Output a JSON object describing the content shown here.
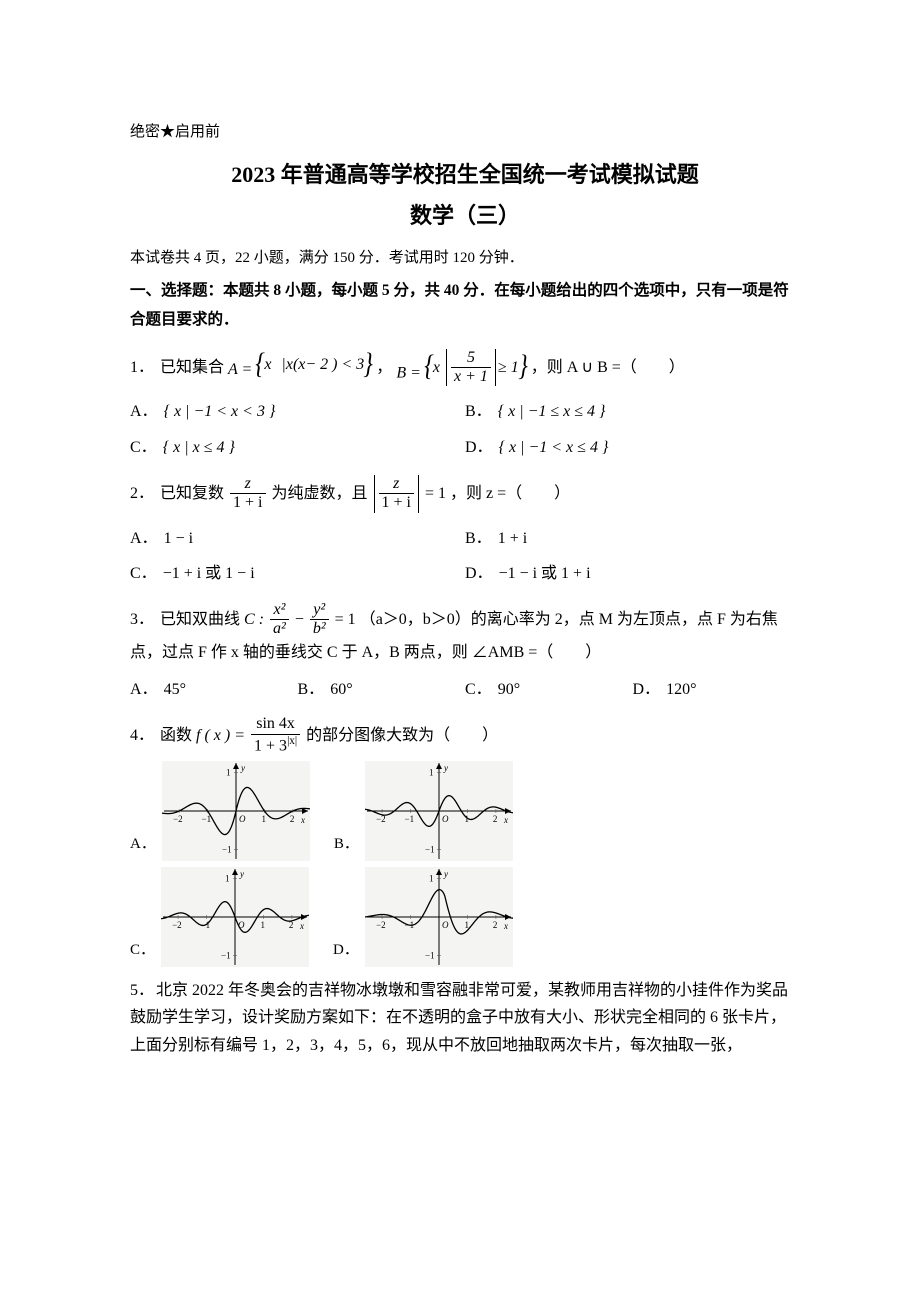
{
  "header": {
    "confidential": "绝密★启用前",
    "title": "2023 年普通高等学校招生全国统一考试模拟试题",
    "subtitle": "数学（三）",
    "intro": "本试卷共 4 页，22 小题，满分 150 分．考试用时 120 分钟．",
    "section1": "一、选择题：本题共 8 小题，每小题 5 分，共 40 分．在每小题给出的四个选项中，只有一项是符合题目要求的．"
  },
  "q1": {
    "num": "1．",
    "pre": "已知集合 ",
    "A_expr": "A = { x | x ( x − 2 ) < 3 }",
    "mid": " ，  ",
    "B_label": "B",
    "B_cond_num": "5",
    "B_cond_den": "x + 1",
    "B_cond_op": " ≥ 1",
    "post": " ，则 A ∪ B =（  ）",
    "opts": {
      "A": "{ x | −1 < x < 3 }",
      "B": "{ x | −1 ≤ x ≤ 4 }",
      "C": "{ x | x ≤ 4 }",
      "D": "{ x | −1 < x ≤ 4 }"
    }
  },
  "q2": {
    "num": "2．",
    "pre": "已知复数 ",
    "frac1_n": "z",
    "frac1_d": "1 + i",
    "mid1": " 为纯虚数，且 ",
    "frac2_n": "z",
    "frac2_d": "1 + i",
    "mid2": " = 1 ，则 z =（  ）",
    "opts": {
      "A": "1 − i",
      "B": "1 + i",
      "C": "−1 + i 或 1 − i",
      "D": "−1 − i 或 1 + i"
    }
  },
  "q3": {
    "num": "3．",
    "pre": "已知双曲线 ",
    "C_label": "C : ",
    "t1_n": "x²",
    "t1_d": "a²",
    "minus": " − ",
    "t2_n": "y²",
    "t2_d": "b²",
    "eq": " = 1",
    "cond": "（a＞0，b＞0）的离心率为 2，点 M 为左顶点，点 F 为右焦",
    "line2": "点，过点 F 作 x 轴的垂线交 C 于 A，B 两点，则 ∠AMB =（  ）",
    "opts": {
      "A": "45°",
      "B": "60°",
      "C": "90°",
      "D": "120°"
    }
  },
  "q4": {
    "num": "4．",
    "pre": "函数 ",
    "fx": "f ( x ) = ",
    "n": "sin 4x",
    "d_pre": "1 + 3",
    "d_exp": "|x|",
    "post": " 的部分图像大致为（  ）",
    "letters": {
      "A": "A．",
      "B": "B．",
      "C": "C．",
      "D": "D．"
    },
    "plot": {
      "width": 148,
      "height": 100,
      "bg": "#f4f4f2",
      "axis_color": "#000000",
      "curve_color": "#000000",
      "xlim": [
        -2.6,
        2.6
      ],
      "ylim": [
        -1.3,
        1.3
      ],
      "xticks": [
        -2,
        -1,
        1,
        2
      ],
      "yticks": [
        -1,
        1
      ],
      "xlabel": "x",
      "ylabel": "y",
      "origin_label": "O",
      "variants": {
        "A": {
          "fn": "hump_center",
          "flip": false
        },
        "B": {
          "fn": "multi_hump",
          "flip": false
        },
        "C": {
          "fn": "multi_hump",
          "flip": true
        },
        "D": {
          "fn": "hump_center",
          "flip": true,
          "shift_center": true
        }
      },
      "curve_width": 1.3
    }
  },
  "q5": {
    "num": "5．",
    "text": "北京 2022 年冬奥会的吉祥物冰墩墩和雪容融非常可爱，某教师用吉祥物的小挂件作为奖品鼓励学生学习，设计奖励方案如下：在不透明的盒子中放有大小、形状完全相同的 6 张卡片，上面分别标有编号 1，2，3，4，5，6，现从中不放回地抽取两次卡片，每次抽取一张，"
  }
}
